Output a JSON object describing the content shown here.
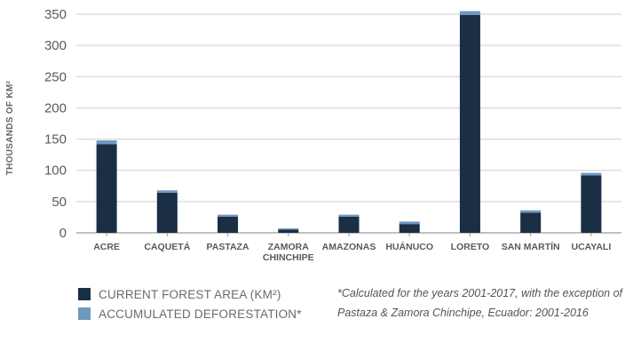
{
  "colors": {
    "forest": "#1a2e44",
    "deforestation": "#6f98bf",
    "axis": "#9a9a9a",
    "grid": "#cfcfcf"
  },
  "chart_data": {
    "type": "bar",
    "stacked": true,
    "ylabel": "THOUSANDS OF KM²",
    "ylim": [
      0,
      350
    ],
    "yticks": [
      0,
      50,
      100,
      150,
      200,
      250,
      300,
      350
    ],
    "grid": true,
    "categories": [
      [
        "ACRE"
      ],
      [
        "CAQUETÁ"
      ],
      [
        "PASTAZA"
      ],
      [
        "ZAMORA",
        "CHINCHIPE"
      ],
      [
        "AMAZONAS"
      ],
      [
        "HUÁNUCO"
      ],
      [
        "LORETO"
      ],
      [
        "SAN MARTÍN"
      ],
      [
        "UCAYALI"
      ]
    ],
    "series": [
      {
        "name": "CURRENT FOREST AREA (KM²)",
        "color_key": "forest",
        "values": [
          142,
          64,
          26,
          5,
          26,
          14,
          349,
          32,
          92
        ]
      },
      {
        "name": "ACCUMULATED DEFORESTATION*",
        "color_key": "deforestation",
        "values": [
          6,
          4,
          3,
          2,
          3,
          4,
          6,
          4,
          4
        ]
      }
    ],
    "legend_position": "bottom-left",
    "footnote": "*Calculated for the years 2001-2017, with the exception of Pastaza & Zamora Chinchipe, Ecuador: 2001-2016"
  }
}
